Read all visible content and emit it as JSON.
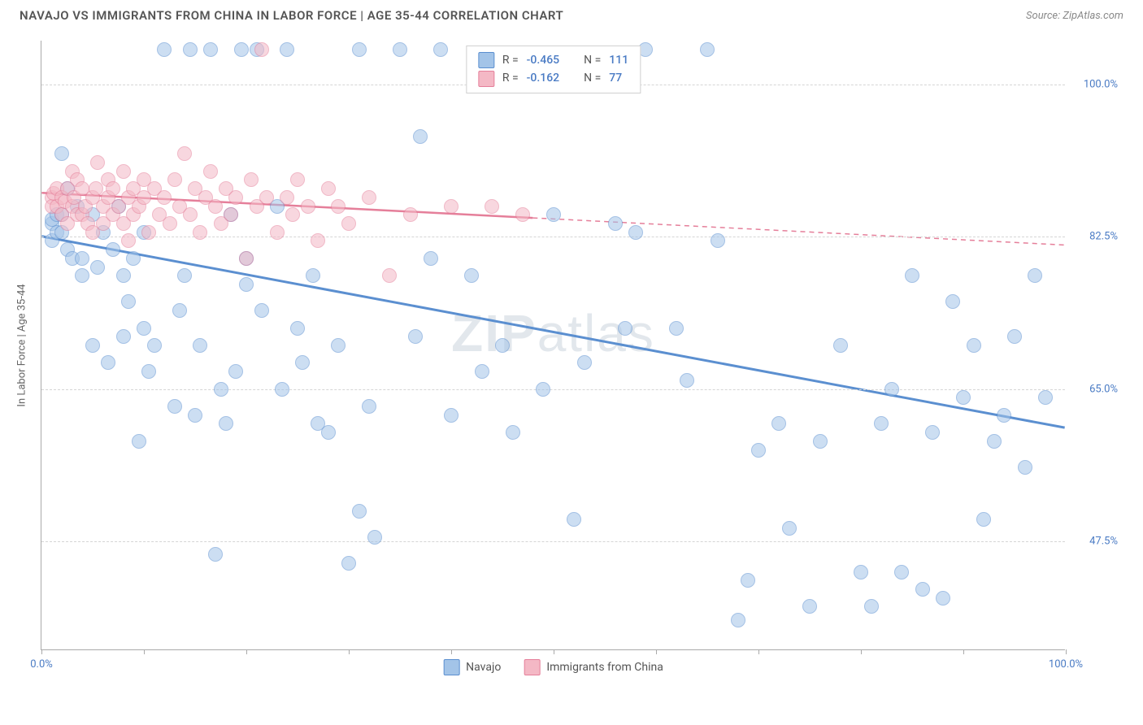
{
  "header": {
    "title": "NAVAJO VS IMMIGRANTS FROM CHINA IN LABOR FORCE | AGE 35-44 CORRELATION CHART",
    "source": "Source: ZipAtlas.com"
  },
  "watermark": {
    "bold": "ZIP",
    "light": "atlas"
  },
  "chart": {
    "type": "scatter",
    "ylabel": "In Labor Force | Age 35-44",
    "xlim": [
      0,
      100
    ],
    "ylim": [
      35,
      105
    ],
    "yticks": [
      {
        "value": 47.5,
        "label": "47.5%"
      },
      {
        "value": 65.0,
        "label": "65.0%"
      },
      {
        "value": 82.5,
        "label": "82.5%"
      },
      {
        "value": 100.0,
        "label": "100.0%"
      }
    ],
    "xticks": [
      0,
      10,
      20,
      30,
      40,
      50,
      60,
      70,
      80,
      90,
      100
    ],
    "xtick_labels": {
      "min": "0.0%",
      "max": "100.0%"
    },
    "marker_radius": 9,
    "background_color": "#ffffff",
    "grid_color": "#d5d5d5",
    "series": [
      {
        "name": "Navajo",
        "legend_label": "Navajo",
        "color_fill": "#a3c4e8",
        "color_stroke": "#5b8fd0",
        "R": "-0.465",
        "N": "111",
        "trend": {
          "x1": 0,
          "y1": 82.5,
          "x2": 100,
          "y2": 60.5,
          "dash_from_x": null,
          "width": 3
        },
        "points": [
          [
            1,
            84
          ],
          [
            1,
            82
          ],
          [
            1,
            84.5
          ],
          [
            1.5,
            85
          ],
          [
            1.5,
            83
          ],
          [
            2,
            85
          ],
          [
            2,
            92
          ],
          [
            2,
            83
          ],
          [
            2.5,
            88
          ],
          [
            2.5,
            81
          ],
          [
            3,
            80
          ],
          [
            3.5,
            86
          ],
          [
            4,
            80
          ],
          [
            4,
            78
          ],
          [
            5,
            85
          ],
          [
            5,
            70
          ],
          [
            5.5,
            79
          ],
          [
            6,
            83
          ],
          [
            6.5,
            68
          ],
          [
            7,
            81
          ],
          [
            7.5,
            86
          ],
          [
            8,
            78
          ],
          [
            8,
            71
          ],
          [
            8.5,
            75
          ],
          [
            9,
            80
          ],
          [
            9.5,
            59
          ],
          [
            10,
            83
          ],
          [
            10,
            72
          ],
          [
            10.5,
            67
          ],
          [
            11,
            70
          ],
          [
            12,
            104
          ],
          [
            13,
            63
          ],
          [
            13.5,
            74
          ],
          [
            14,
            78
          ],
          [
            14.5,
            104
          ],
          [
            15,
            62
          ],
          [
            15.5,
            70
          ],
          [
            16.5,
            104
          ],
          [
            17,
            46
          ],
          [
            17.5,
            65
          ],
          [
            18,
            61
          ],
          [
            18.5,
            85
          ],
          [
            19,
            67
          ],
          [
            19.5,
            104
          ],
          [
            20,
            80
          ],
          [
            20,
            77
          ],
          [
            21,
            104
          ],
          [
            21.5,
            74
          ],
          [
            23,
            86
          ],
          [
            23.5,
            65
          ],
          [
            24,
            104
          ],
          [
            25,
            72
          ],
          [
            25.5,
            68
          ],
          [
            26.5,
            78
          ],
          [
            27,
            61
          ],
          [
            28,
            60
          ],
          [
            29,
            70
          ],
          [
            30,
            45
          ],
          [
            31,
            51
          ],
          [
            31,
            104
          ],
          [
            32,
            63
          ],
          [
            32.5,
            48
          ],
          [
            35,
            104
          ],
          [
            36.5,
            71
          ],
          [
            37,
            94
          ],
          [
            38,
            80
          ],
          [
            39,
            104
          ],
          [
            40,
            62
          ],
          [
            42,
            78
          ],
          [
            43,
            67
          ],
          [
            45,
            70
          ],
          [
            46,
            60
          ],
          [
            49,
            65
          ],
          [
            50,
            85
          ],
          [
            52,
            50
          ],
          [
            53,
            68
          ],
          [
            56,
            84
          ],
          [
            57,
            72
          ],
          [
            58,
            83
          ],
          [
            59,
            104
          ],
          [
            62,
            72
          ],
          [
            63,
            66
          ],
          [
            65,
            104
          ],
          [
            66,
            82
          ],
          [
            68,
            38.5
          ],
          [
            69,
            43
          ],
          [
            70,
            58
          ],
          [
            72,
            61
          ],
          [
            73,
            49
          ],
          [
            75,
            40
          ],
          [
            76,
            59
          ],
          [
            78,
            70
          ],
          [
            80,
            44
          ],
          [
            81,
            40
          ],
          [
            82,
            61
          ],
          [
            83,
            65
          ],
          [
            84,
            44
          ],
          [
            85,
            78
          ],
          [
            86,
            42
          ],
          [
            87,
            60
          ],
          [
            88,
            41
          ],
          [
            89,
            75
          ],
          [
            90,
            64
          ],
          [
            91,
            70
          ],
          [
            92,
            50
          ],
          [
            93,
            59
          ],
          [
            94,
            62
          ],
          [
            95,
            71
          ],
          [
            96,
            56
          ],
          [
            97,
            78
          ],
          [
            98,
            64
          ]
        ]
      },
      {
        "name": "Immigrants from China",
        "legend_label": "Immigrants from China",
        "color_fill": "#f4b8c5",
        "color_stroke": "#e57f9a",
        "R": "-0.162",
        "N": "77",
        "trend": {
          "x1": 0,
          "y1": 87.5,
          "x2": 100,
          "y2": 81.5,
          "dash_from_x": 48,
          "width": 2.5
        },
        "points": [
          [
            1,
            87
          ],
          [
            1,
            86
          ],
          [
            1.2,
            87.5
          ],
          [
            1.5,
            86
          ],
          [
            1.5,
            88
          ],
          [
            2,
            87
          ],
          [
            2,
            85
          ],
          [
            2.3,
            86.5
          ],
          [
            2.5,
            88
          ],
          [
            2.5,
            84
          ],
          [
            3,
            86
          ],
          [
            3,
            90
          ],
          [
            3.2,
            87
          ],
          [
            3.5,
            85
          ],
          [
            3.5,
            89
          ],
          [
            4,
            85
          ],
          [
            4,
            88
          ],
          [
            4.3,
            86
          ],
          [
            4.5,
            84
          ],
          [
            5,
            87
          ],
          [
            5,
            83
          ],
          [
            5.3,
            88
          ],
          [
            5.5,
            91
          ],
          [
            6,
            86
          ],
          [
            6,
            84
          ],
          [
            6.5,
            87
          ],
          [
            6.5,
            89
          ],
          [
            7,
            88
          ],
          [
            7,
            85
          ],
          [
            7.5,
            86
          ],
          [
            8,
            90
          ],
          [
            8,
            84
          ],
          [
            8.5,
            87
          ],
          [
            8.5,
            82
          ],
          [
            9,
            88
          ],
          [
            9,
            85
          ],
          [
            9.5,
            86
          ],
          [
            10,
            87
          ],
          [
            10,
            89
          ],
          [
            10.5,
            83
          ],
          [
            11,
            88
          ],
          [
            11.5,
            85
          ],
          [
            12,
            87
          ],
          [
            12.5,
            84
          ],
          [
            13,
            89
          ],
          [
            13.5,
            86
          ],
          [
            14,
            92
          ],
          [
            14.5,
            85
          ],
          [
            15,
            88
          ],
          [
            15.5,
            83
          ],
          [
            16,
            87
          ],
          [
            16.5,
            90
          ],
          [
            17,
            86
          ],
          [
            17.5,
            84
          ],
          [
            18,
            88
          ],
          [
            18.5,
            85
          ],
          [
            19,
            87
          ],
          [
            20,
            80
          ],
          [
            20.5,
            89
          ],
          [
            21,
            86
          ],
          [
            21.5,
            104
          ],
          [
            22,
            87
          ],
          [
            23,
            83
          ],
          [
            24,
            87
          ],
          [
            24.5,
            85
          ],
          [
            25,
            89
          ],
          [
            26,
            86
          ],
          [
            27,
            82
          ],
          [
            28,
            88
          ],
          [
            29,
            86
          ],
          [
            30,
            84
          ],
          [
            32,
            87
          ],
          [
            34,
            78
          ],
          [
            36,
            85
          ],
          [
            40,
            86
          ],
          [
            44,
            86
          ],
          [
            47,
            85
          ]
        ]
      }
    ],
    "legend_stats": {
      "r_label": "R =",
      "n_label": "N ="
    }
  }
}
